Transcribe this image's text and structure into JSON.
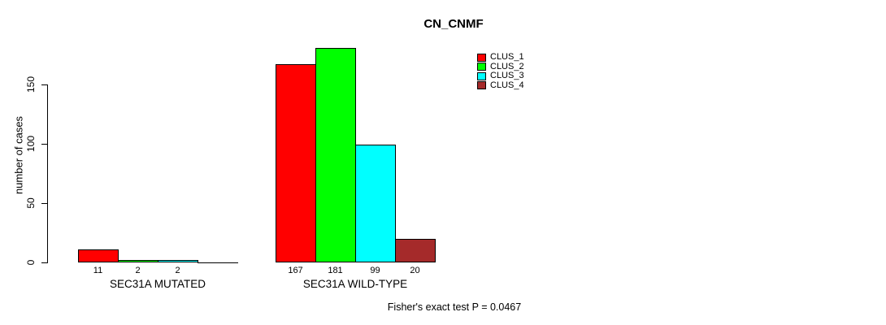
{
  "chart_data": {
    "type": "bar",
    "title": "CN_CNMF",
    "ylabel": "number of cases",
    "xlabel": "",
    "categories": [
      "SEC31A MUTATED",
      "SEC31A WILD-TYPE"
    ],
    "series": [
      {
        "name": "CLUS_1",
        "color": "#ff0000",
        "values": [
          11,
          167
        ]
      },
      {
        "name": "CLUS_2",
        "color": "#00ff00",
        "values": [
          2,
          181
        ]
      },
      {
        "name": "CLUS_3",
        "color": "#00ffff",
        "values": [
          2,
          99
        ]
      },
      {
        "name": "CLUS_4",
        "color": "#a52a2a",
        "values": [
          0,
          20
        ]
      }
    ],
    "bar_value_labels": [
      [
        "11",
        "2",
        "2",
        ""
      ],
      [
        "167",
        "181",
        "99",
        "20"
      ]
    ],
    "yticks": [
      0,
      50,
      100,
      150
    ],
    "ylim": [
      0,
      185
    ],
    "grid": false,
    "legend_position": "top-right",
    "annotation": "Fisher's exact test P = 0.0467"
  },
  "colors": {
    "background": "#ffffff",
    "axis": "#000000",
    "text": "#000000",
    "bar_border": "#000000"
  }
}
